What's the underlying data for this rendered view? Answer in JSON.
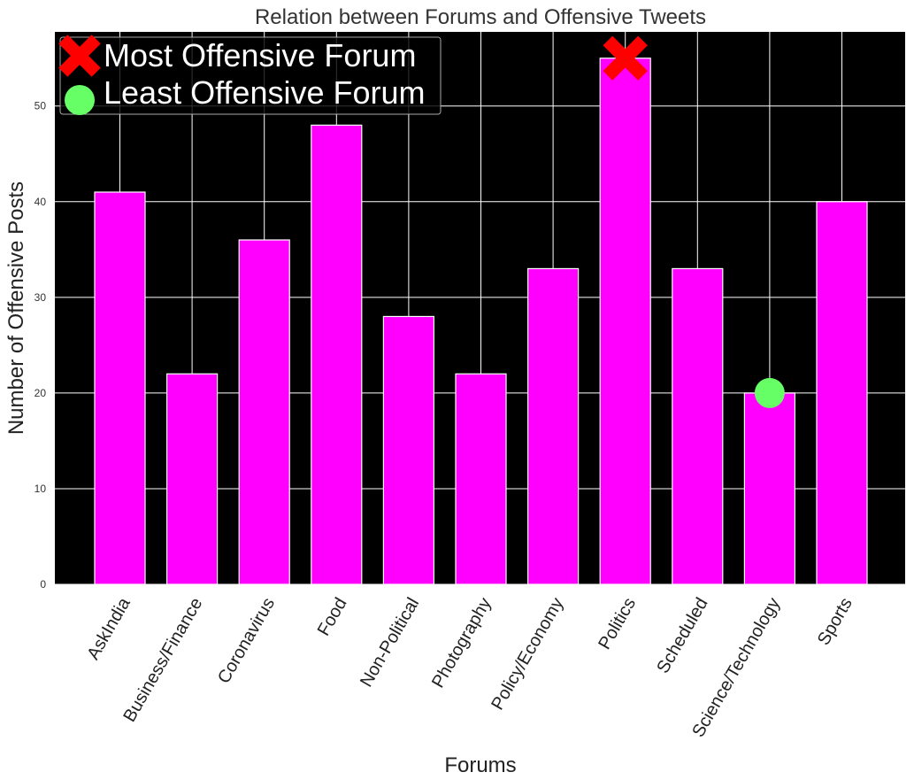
{
  "chart_data": {
    "type": "bar",
    "title": "Relation between Forums and Offensive Tweets",
    "xlabel": "Forums",
    "ylabel": "Number of Offensive Posts",
    "categories": [
      "AskIndia",
      "Business/Finance",
      "Coronavirus",
      "Food",
      "Non-Political",
      "Photography",
      "Policy/Economy",
      "Politics",
      "Scheduled",
      "Science/Technology",
      "Sports"
    ],
    "values": [
      41,
      22,
      36,
      48,
      28,
      22,
      33,
      55,
      33,
      20,
      40
    ],
    "ylim": [
      0,
      57.75
    ],
    "yticks": [
      0,
      10,
      20,
      30,
      40,
      50
    ],
    "grid": true,
    "background_color": "#000000",
    "bar_color": "#ff00ff",
    "bar_edge_color": "#ffffff",
    "grid_color": "#ffffff",
    "legend_position": "top-left",
    "legend": [
      {
        "label": "Most Offensive Forum",
        "marker": "x-icon",
        "color": "#ff0000"
      },
      {
        "label": "Least Offensive Forum",
        "marker": "circle-icon",
        "color": "#66ff66"
      }
    ],
    "markers": [
      {
        "category": "Politics",
        "value": 55,
        "marker": "x-icon",
        "color": "#ff0000"
      },
      {
        "category": "Science/Technology",
        "value": 20,
        "marker": "circle-icon",
        "color": "#66ff66"
      }
    ]
  }
}
